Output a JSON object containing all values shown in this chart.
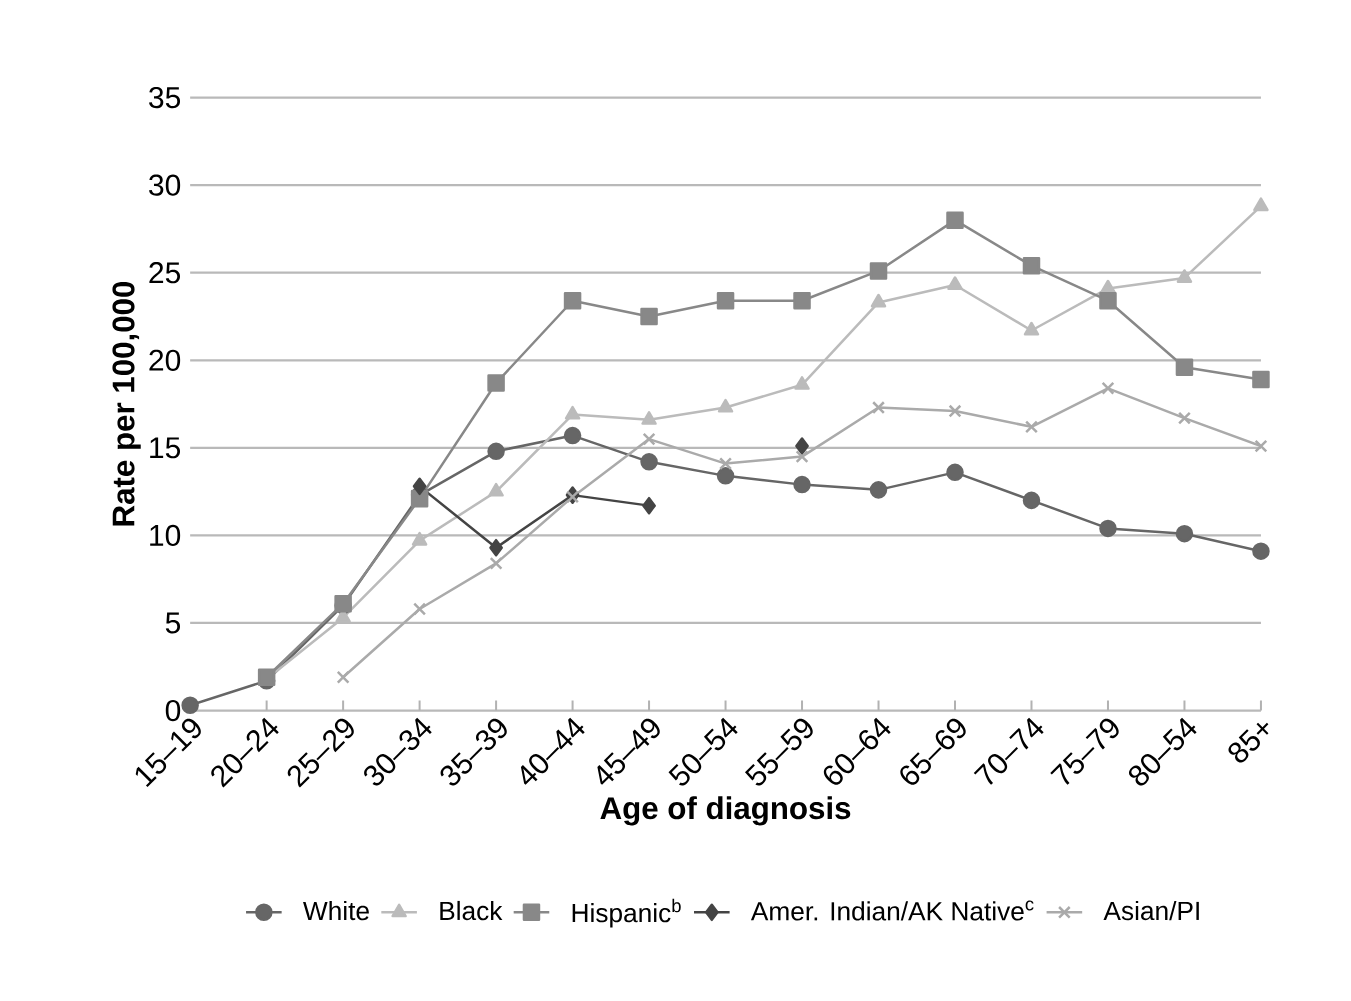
{
  "chart_data": {
    "type": "line",
    "xlabel": "Age of diagnosis",
    "ylabel": "Rate per 100,000",
    "categories": [
      "15–19",
      "20–24",
      "25–29",
      "30–34",
      "35–39",
      "40–44",
      "45–49",
      "50–54",
      "55–59",
      "60–64",
      "65–69",
      "70–74",
      "75–79",
      "80–54",
      "85+"
    ],
    "series": [
      {
        "name": "White",
        "color": "#666666",
        "marker": "circle",
        "values": [
          0.3,
          1.7,
          6.0,
          12.3,
          14.8,
          15.7,
          14.2,
          13.4,
          12.9,
          12.6,
          13.6,
          12.0,
          10.4,
          10.1,
          9.1
        ]
      },
      {
        "name": "Black",
        "color": "#bbbbbb",
        "marker": "triangle",
        "values": [
          null,
          1.8,
          5.3,
          9.7,
          12.5,
          16.9,
          16.6,
          17.3,
          18.6,
          23.3,
          24.3,
          21.7,
          24.1,
          24.7,
          28.8
        ]
      },
      {
        "name": "Hispanic$^{b}$",
        "color": "#888888",
        "marker": "square",
        "values": [
          null,
          1.9,
          6.1,
          12.1,
          18.7,
          23.4,
          22.5,
          23.4,
          23.4,
          25.1,
          28.0,
          25.4,
          23.4,
          19.6,
          18.9
        ]
      },
      {
        "name": "Amer. Indian/AK Native$^{c}$",
        "color": "#444444",
        "marker": "diamond",
        "values": [
          null,
          null,
          null,
          12.8,
          9.3,
          12.3,
          11.7,
          null,
          15.1,
          null,
          null,
          null,
          null,
          null,
          null
        ]
      },
      {
        "name": "Asian/PI",
        "color": "#aaaaaa",
        "marker": "cross",
        "values": [
          null,
          null,
          1.9,
          5.8,
          8.4,
          12.2,
          15.5,
          14.1,
          14.5,
          17.3,
          17.1,
          16.2,
          18.4,
          16.7,
          15.1
        ]
      }
    ],
    "ylim": [
      0,
      35
    ],
    "yticks": [
      0,
      5,
      10,
      15,
      20,
      25,
      30,
      35
    ],
    "grid": "y",
    "legend": "bottom"
  }
}
